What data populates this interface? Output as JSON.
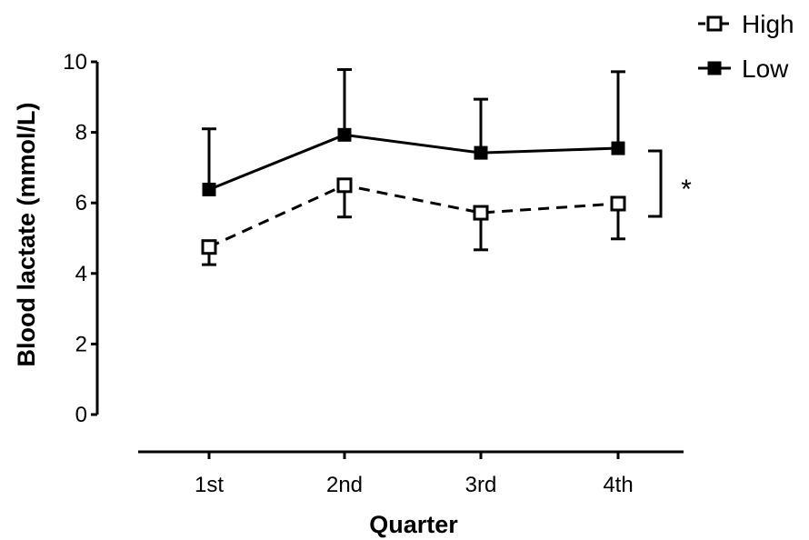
{
  "chart_data": {
    "type": "line",
    "xlabel": "Quarter",
    "ylabel": "Blood lactate (mmol/L)",
    "categories": [
      "1st",
      "2nd",
      "3rd",
      "4th"
    ],
    "ylim": [
      0,
      10
    ],
    "yticks": [
      0,
      2,
      4,
      6,
      8,
      10
    ],
    "grid": false,
    "legend_position": "top-right",
    "series": [
      {
        "name": "High",
        "marker": "open-square",
        "line_style": "dashed",
        "color": "#000000",
        "values": [
          4.75,
          6.5,
          5.72,
          5.98
        ],
        "error": [
          0.5,
          0.9,
          1.05,
          1.0
        ],
        "error_direction": "down"
      },
      {
        "name": "Low",
        "marker": "filled-square",
        "line_style": "solid",
        "color": "#000000",
        "values": [
          6.38,
          7.93,
          7.42,
          7.55
        ],
        "error": [
          1.72,
          1.85,
          1.52,
          2.17
        ],
        "error_direction": "up"
      }
    ],
    "annotations": [
      {
        "text": "*",
        "type": "significance-bracket",
        "spans_series": [
          "High",
          "Low"
        ]
      }
    ]
  }
}
